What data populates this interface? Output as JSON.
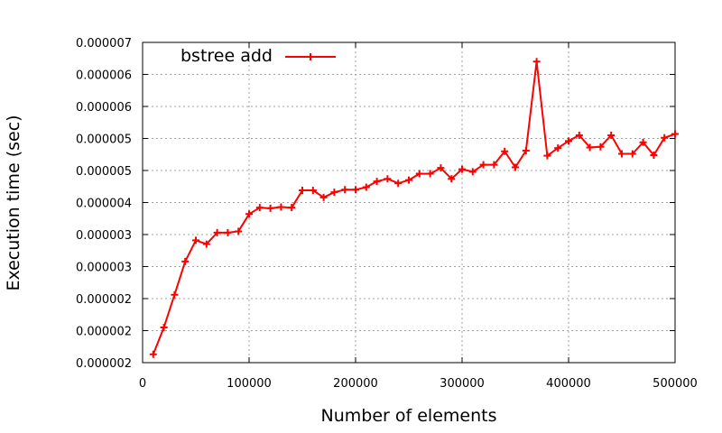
{
  "chart_data": {
    "type": "line",
    "title": "",
    "xlabel": "Number of elements",
    "ylabel": "Execution time (sec)",
    "xlim": [
      0,
      500000
    ],
    "ylim": [
      1.5e-06,
      6.5e-06
    ],
    "grid": true,
    "legend_position": "top-left",
    "x_ticks": [
      0,
      100000,
      200000,
      300000,
      400000,
      500000
    ],
    "x_tick_labels": [
      "0",
      "100000",
      "200000",
      "300000",
      "400000",
      "500000"
    ],
    "y_ticks": [
      1.5e-06,
      2e-06,
      2.5e-06,
      3e-06,
      3.5e-06,
      4e-06,
      4.5e-06,
      5e-06,
      5.5e-06,
      6e-06,
      6.5e-06
    ],
    "y_tick_labels": [
      "0.000002",
      "0.000002",
      "0.000002",
      "0.000003",
      "0.000003",
      "0.000004",
      "0.000005",
      "0.000005",
      "0.000006",
      "0.000006",
      "0.000007"
    ],
    "series": [
      {
        "name": "bstree add",
        "color": "#ff0000",
        "marker": "plus",
        "x": [
          10000,
          20000,
          30000,
          40000,
          50000,
          60000,
          70000,
          80000,
          90000,
          100000,
          110000,
          120000,
          130000,
          140000,
          150000,
          160000,
          170000,
          180000,
          190000,
          200000,
          210000,
          220000,
          230000,
          240000,
          250000,
          260000,
          270000,
          280000,
          290000,
          300000,
          310000,
          320000,
          330000,
          340000,
          350000,
          360000,
          370000,
          380000,
          390000,
          400000,
          410000,
          420000,
          430000,
          440000,
          450000,
          460000,
          470000,
          480000,
          490000,
          500000
        ],
        "y": [
          1.63e-06,
          2.05e-06,
          2.56e-06,
          3.08e-06,
          3.41e-06,
          3.35e-06,
          3.53e-06,
          3.53e-06,
          3.55e-06,
          3.82e-06,
          3.92e-06,
          3.91e-06,
          3.93e-06,
          3.92e-06,
          4.19e-06,
          4.19e-06,
          4.08e-06,
          4.16e-06,
          4.2e-06,
          4.2e-06,
          4.24e-06,
          4.33e-06,
          4.37e-06,
          4.3e-06,
          4.35e-06,
          4.45e-06,
          4.45e-06,
          4.54e-06,
          4.37e-06,
          4.52e-06,
          4.48e-06,
          4.59e-06,
          4.59e-06,
          4.8e-06,
          4.55e-06,
          4.81e-06,
          6.2e-06,
          4.73e-06,
          4.85e-06,
          4.96e-06,
          5.05e-06,
          4.86e-06,
          4.87e-06,
          5.05e-06,
          4.76e-06,
          4.76e-06,
          4.94e-06,
          4.74e-06,
          5.01e-06,
          5.07e-06
        ]
      }
    ]
  }
}
